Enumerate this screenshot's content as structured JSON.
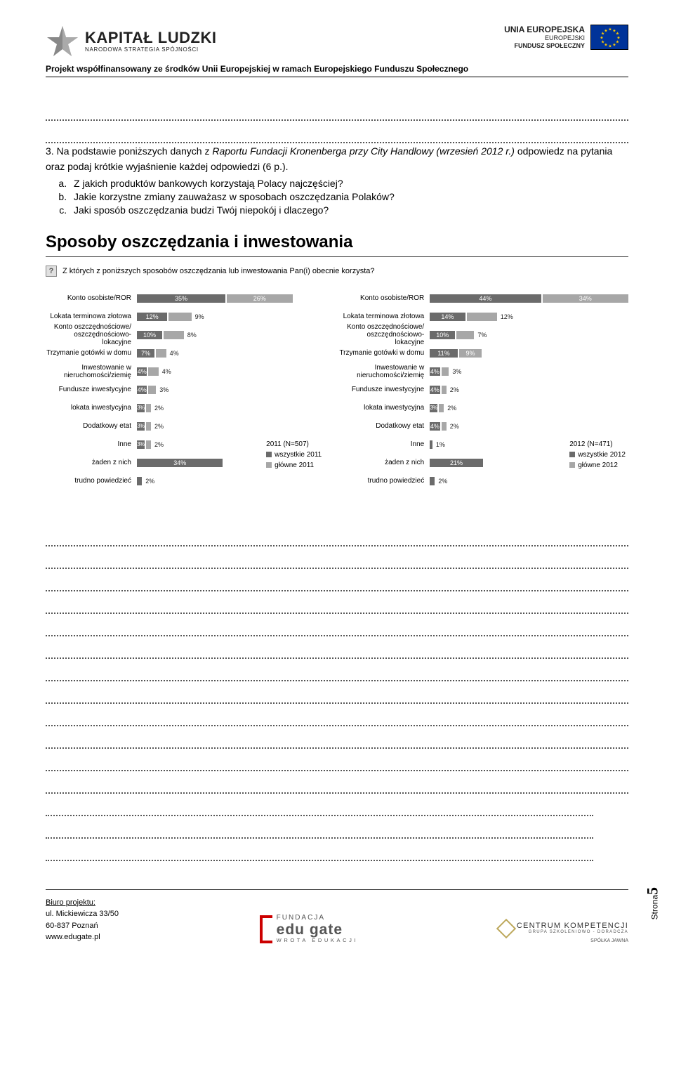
{
  "header": {
    "kl_main": "KAPITAŁ LUDZKI",
    "kl_sub": "NARODOWA STRATEGIA SPÓJNOŚCI",
    "eu_line1": "UNIA EUROPEJSKA",
    "eu_line2": "EUROPEJSKI",
    "eu_line3": "FUNDUSZ SPOŁECZNY"
  },
  "subheader": "Projekt współfinansowany ze środków Unii Europejskiej w ramach Europejskiego Funduszu Społecznego",
  "question": {
    "num": "3.",
    "intro_a": "Na podstawie poniższych danych z ",
    "intro_b_italic": "Raportu Fundacji Kronenberga przy City Handlowy (wrzesień 2012 r.)",
    "intro_c": " odpowiedz na pytania oraz podaj krótkie wyjaśnienie każdej odpowiedzi (6 p.).",
    "a": "Z jakich produktów bankowych korzystają Polacy najczęściej?",
    "b": "Jakie korzystne zmiany zauważasz w sposobach oszczędzania Polaków?",
    "c": "Jaki sposób oszczędzania budzi Twój niepokój i dlaczego?"
  },
  "chart": {
    "title": "Sposoby oszczędzania i inwestowania",
    "question": "Z których z poniższych sposobów oszczędzania lub inwestowania Pan(i) obecnie korzysta?",
    "categories": [
      "Konto osobiste/ROR",
      "Lokata terminowa złotowa",
      "Konto oszczędnościowe/ oszczędnościowo-lokacyjne",
      "Trzymanie gotówki w domu",
      "Inwestowanie w nieruchomości/ziemię",
      "Fundusze inwestycyjne",
      "lokata inwestycyjna",
      "Dodatkowy etat",
      "Inne",
      "żaden z nich",
      "trudno powiedzieć"
    ],
    "left": {
      "legend_title": "2011 (N=507)",
      "series1_name": "wszystkie 2011",
      "series2_name": "główne 2011",
      "series1_color": "#6b6b6b",
      "series2_color": "#a7a7a7",
      "rows": [
        {
          "v1": 35,
          "v2": 26,
          "t1": "35%",
          "t2": "26%",
          "out2": false
        },
        {
          "v1": 12,
          "v2": 9,
          "t1": "12%",
          "t2": "9%",
          "out2": true
        },
        {
          "v1": 10,
          "v2": 8,
          "t1": "10%",
          "t2": "8%",
          "out2": true
        },
        {
          "v1": 7,
          "v2": 4,
          "t1": "7%",
          "t2": "4%",
          "out2": true
        },
        {
          "v1": 4,
          "v2": 4,
          "t1": "4%",
          "t2": "4%",
          "out2": true
        },
        {
          "v1": 4,
          "v2": 3,
          "t1": "4%",
          "t2": "3%",
          "out2": true
        },
        {
          "v1": 3,
          "v2": 2,
          "t1": "3%",
          "t2": "2%",
          "out2": true,
          "compact1": true
        },
        {
          "v1": 3,
          "v2": 2,
          "t1": "3%",
          "t2": "2%",
          "out2": true,
          "compact1": true
        },
        {
          "v1": 3,
          "v2": 2,
          "t1": "3%",
          "t2": "2%",
          "out2": true,
          "compact1": true
        },
        {
          "v1": 34,
          "v2": 0,
          "t1": "34%",
          "t2": "",
          "out2": true
        },
        {
          "v1": 2,
          "v2": 0,
          "t1": "2%",
          "t2": "",
          "out2": true,
          "t1out": true
        }
      ]
    },
    "right": {
      "legend_title": "2012 (N=471)",
      "series1_name": "wszystkie 2012",
      "series2_name": "główne 2012",
      "series1_color": "#6b6b6b",
      "series2_color": "#a7a7a7",
      "rows": [
        {
          "v1": 44,
          "v2": 34,
          "t1": "44%",
          "t2": "34%",
          "out2": false
        },
        {
          "v1": 14,
          "v2": 12,
          "t1": "14%",
          "t2": "12%",
          "out2": true
        },
        {
          "v1": 10,
          "v2": 7,
          "t1": "10%",
          "t2": "7%",
          "out2": true
        },
        {
          "v1": 11,
          "v2": 9,
          "t1": "11%",
          "t2": "9%",
          "out2": false
        },
        {
          "v1": 4,
          "v2": 3,
          "t1": "4%",
          "t2": "3%",
          "out2": true
        },
        {
          "v1": 4,
          "v2": 2,
          "t1": "4%",
          "t2": "2%",
          "out2": true
        },
        {
          "v1": 3,
          "v2": 2,
          "t1": "3%",
          "t2": "2%",
          "out2": true,
          "compact1": true
        },
        {
          "v1": 4,
          "v2": 2,
          "t1": "4%",
          "t2": "2%",
          "out2": true
        },
        {
          "v1": 1,
          "v2": 0,
          "t1": "",
          "t2": "1%",
          "out2": true
        },
        {
          "v1": 21,
          "v2": 0,
          "t1": "21%",
          "t2": "",
          "out2": true
        },
        {
          "v1": 2,
          "v2": 0,
          "t1": "2%",
          "t2": "",
          "out2": true,
          "t1out": true
        }
      ]
    },
    "bar_scale": 3.6
  },
  "dotted_count": 15,
  "pagenum_label": "Strona",
  "pagenum_value": "5",
  "footer": {
    "biuro": "Biuro projektu:",
    "addr1": "ul. Mickiewicza 33/50",
    "addr2": "60-837 Poznań",
    "web": "www.edugate.pl",
    "eg1": "FUNDACJA",
    "eg2": "edu gate",
    "eg3": "WROTA EDUKACJI",
    "ck1": "CENTRUM KOMPETENCJI",
    "ck2": "GRUPA  SZKOLENIOWO - DORADCZA",
    "ck3": "SPÓŁKA JAWNA"
  }
}
